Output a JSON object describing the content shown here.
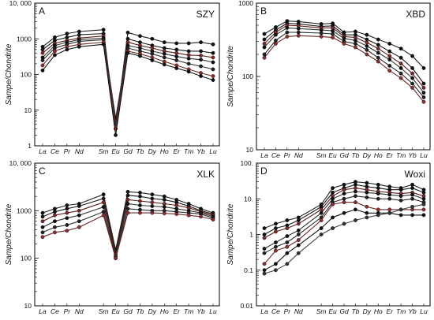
{
  "chart_data": [
    {
      "type": "line",
      "panel_label": "A",
      "title": "SZY",
      "ylabel": "Sampe/Chondrite",
      "yscale": "log",
      "ylim": [
        1,
        10000
      ],
      "yticks": [
        "1",
        "10",
        "100",
        "1000",
        "10, 000"
      ],
      "categories": [
        "La",
        "Ce",
        "Pr",
        "Nd",
        "",
        "Sm",
        "Eu",
        "Gd",
        "Tb",
        "Dy",
        "Ho",
        "Er",
        "Tm",
        "Yb",
        "Lu"
      ],
      "series": [
        {
          "values": [
            600,
            1100,
            1400,
            1600,
            null,
            1800,
            3,
            1500,
            1200,
            1000,
            800,
            750,
            750,
            800,
            700
          ]
        },
        {
          "values": [
            500,
            900,
            1100,
            1300,
            null,
            1400,
            4,
            1000,
            800,
            650,
            550,
            500,
            450,
            450,
            400
          ]
        },
        {
          "values": [
            400,
            750,
            900,
            1050,
            null,
            1200,
            5,
            800,
            650,
            550,
            450,
            400,
            350,
            340,
            300
          ]
        },
        {
          "values": [
            300,
            650,
            800,
            950,
            null,
            1050,
            6,
            650,
            550,
            450,
            380,
            320,
            280,
            260,
            220
          ]
        },
        {
          "values": [
            250,
            550,
            700,
            850,
            null,
            950,
            4,
            550,
            450,
            380,
            300,
            250,
            200,
            170,
            140
          ]
        },
        {
          "values": [
            180,
            450,
            600,
            700,
            null,
            800,
            3,
            450,
            380,
            300,
            230,
            180,
            140,
            110,
            90
          ]
        },
        {
          "values": [
            130,
            350,
            500,
            600,
            null,
            700,
            2,
            400,
            330,
            250,
            190,
            150,
            120,
            90,
            70
          ]
        }
      ]
    },
    {
      "type": "line",
      "panel_label": "B",
      "title": "XBD",
      "ylabel": "Sampe/Chondrite",
      "yscale": "log",
      "ylim": [
        10,
        1000
      ],
      "yticks": [
        "10",
        "100",
        "1000"
      ],
      "categories": [
        "La",
        "Ce",
        "Pr",
        "Nd",
        "",
        "Sm",
        "Eu",
        "Gd",
        "Tb",
        "Dy",
        "Ho",
        "Er",
        "Tm",
        "Yb",
        "Lu"
      ],
      "series": [
        {
          "values": [
            380,
            470,
            570,
            560,
            null,
            520,
            530,
            400,
            410,
            370,
            320,
            280,
            240,
            190,
            130
          ]
        },
        {
          "values": [
            320,
            430,
            530,
            520,
            null,
            480,
            490,
            370,
            370,
            320,
            270,
            220,
            180,
            130,
            80
          ]
        },
        {
          "values": [
            280,
            400,
            500,
            490,
            null,
            460,
            460,
            350,
            340,
            290,
            240,
            190,
            150,
            110,
            70
          ]
        },
        {
          "values": [
            250,
            370,
            460,
            450,
            null,
            430,
            420,
            330,
            310,
            260,
            210,
            170,
            130,
            95,
            60
          ]
        },
        {
          "values": [
            200,
            310,
            400,
            400,
            null,
            390,
            380,
            300,
            280,
            230,
            180,
            140,
            110,
            80,
            52
          ]
        },
        {
          "values": [
            180,
            280,
            350,
            360,
            null,
            350,
            340,
            280,
            250,
            200,
            160,
            120,
            95,
            70,
            45
          ]
        }
      ]
    },
    {
      "type": "line",
      "panel_label": "C",
      "title": "XLK",
      "ylabel": "Sampe/Chondrite",
      "yscale": "log",
      "ylim": [
        10,
        10000
      ],
      "yticks": [
        "10",
        "100",
        "1000",
        "10, 000"
      ],
      "categories": [
        "La",
        "Ce",
        "Pr",
        "Nd",
        "",
        "Sm",
        "Eu",
        "Gd",
        "Tb",
        "Dy",
        "Ho",
        "Er",
        "Tm",
        "Yb",
        "Lu"
      ],
      "series": [
        {
          "values": [
            900,
            1100,
            1300,
            1400,
            null,
            2200,
            150,
            2500,
            2400,
            2200,
            2000,
            1700,
            1400,
            1100,
            900
          ]
        },
        {
          "values": [
            750,
            950,
            1100,
            1250,
            null,
            1800,
            130,
            2100,
            2000,
            1800,
            1700,
            1500,
            1250,
            1000,
            850
          ]
        },
        {
          "values": [
            600,
            800,
            900,
            1000,
            null,
            1500,
            120,
            1700,
            1600,
            1500,
            1400,
            1300,
            1150,
            950,
            800
          ]
        },
        {
          "values": [
            450,
            600,
            700,
            800,
            null,
            1200,
            110,
            1400,
            1300,
            1250,
            1200,
            1100,
            1000,
            900,
            750
          ]
        },
        {
          "values": [
            350,
            450,
            500,
            600,
            null,
            950,
            100,
            1100,
            1050,
            1000,
            1000,
            950,
            900,
            850,
            700
          ]
        },
        {
          "values": [
            280,
            350,
            380,
            450,
            null,
            800,
            100,
            900,
            900,
            900,
            880,
            850,
            800,
            750,
            650
          ]
        }
      ]
    },
    {
      "type": "line",
      "panel_label": "D",
      "title": "Woxi",
      "ylabel": "Sampe/Chondrite",
      "yscale": "log",
      "ylim": [
        0.01,
        100
      ],
      "yticks": [
        "0.01",
        "0.1",
        "1",
        "10.",
        "100."
      ],
      "categories": [
        "La",
        "Ce",
        "Pr",
        "Nd",
        "",
        "Sm",
        "Eu",
        "Gd",
        "Tb",
        "Dy",
        "Ho",
        "Er",
        "Tm",
        "Yb",
        "Lu"
      ],
      "series": [
        {
          "values": [
            1.5,
            2,
            2.5,
            3,
            null,
            7,
            20,
            25,
            30,
            28,
            25,
            22,
            20,
            25,
            18
          ]
        },
        {
          "values": [
            1,
            1.5,
            1.8,
            2.5,
            null,
            6,
            15,
            20,
            25,
            22,
            20,
            18,
            18,
            20,
            15
          ]
        },
        {
          "values": [
            0.8,
            1.2,
            1.5,
            2,
            null,
            5,
            12,
            18,
            20,
            18,
            16,
            15,
            14,
            15,
            12
          ]
        },
        {
          "values": [
            0.4,
            0.6,
            0.9,
            1.3,
            null,
            4,
            10,
            14,
            16,
            15,
            14,
            13,
            12,
            13,
            10
          ]
        },
        {
          "values": [
            0.3,
            0.45,
            0.6,
            1,
            null,
            3,
            8,
            10,
            12,
            11,
            10,
            10,
            9,
            10,
            8
          ]
        },
        {
          "values": [
            0.15,
            0.35,
            0.45,
            0.7,
            null,
            2.5,
            7,
            8,
            8,
            6,
            5,
            5,
            5,
            5,
            5
          ]
        },
        {
          "values": [
            0.1,
            0.15,
            0.3,
            0.5,
            null,
            1.5,
            3,
            4,
            5,
            4,
            4,
            4,
            3.5,
            3.5,
            3.5
          ]
        },
        {
          "values": [
            0.08,
            0.1,
            0.15,
            0.3,
            null,
            1,
            1.5,
            2,
            2.5,
            3,
            3.5,
            4,
            5,
            6,
            7
          ]
        }
      ]
    }
  ]
}
